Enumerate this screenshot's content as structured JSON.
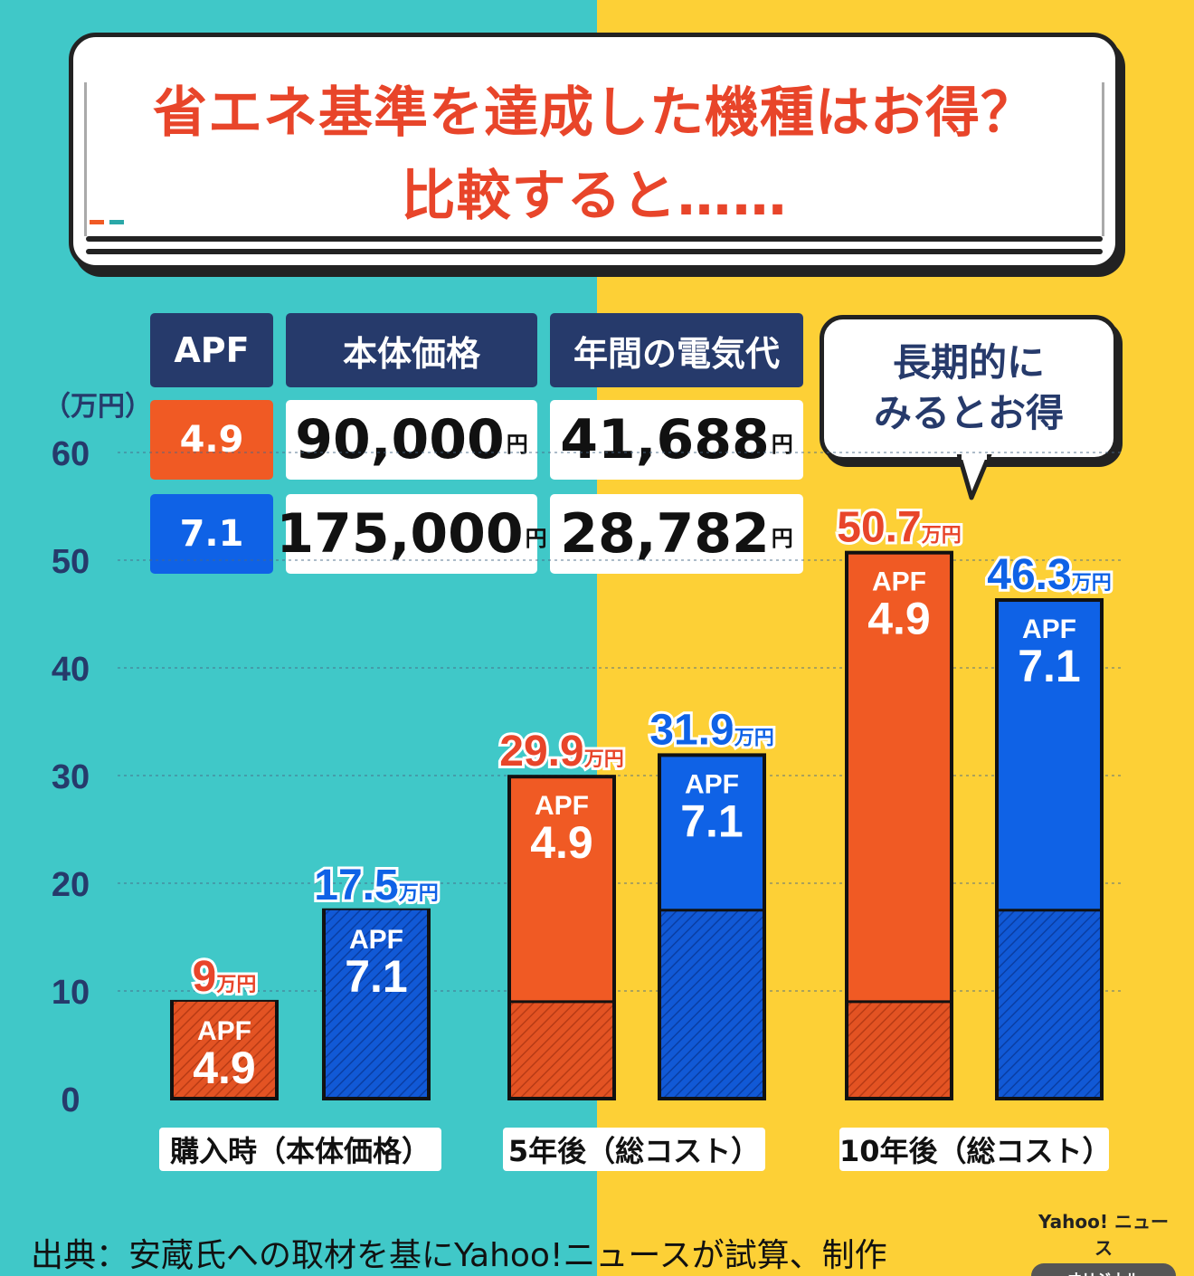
{
  "title_lines": [
    "省エネ基準を達成した機種はお得？",
    "比較すると……"
  ],
  "table": {
    "headers": [
      "APF",
      "本体価格",
      "年間の電気代"
    ],
    "rows": [
      {
        "apf": "4.9",
        "price": "90,000",
        "electricity": "41,688"
      },
      {
        "apf": "7.1",
        "price": "175,000",
        "electricity": "28,782"
      }
    ],
    "unit": "円"
  },
  "bubble_lines": [
    "長期的に",
    "みるとお得"
  ],
  "colors": {
    "apf49": "#f05a24",
    "apf71": "#0f62e6",
    "label49": "#e8452a",
    "label71": "#0f62e6",
    "navy": "#263a6b"
  },
  "chart_data": {
    "type": "bar",
    "ylabel": "（万円）",
    "ylim": [
      0,
      60
    ],
    "yticks": [
      0,
      10,
      20,
      30,
      40,
      50,
      60
    ],
    "grid": true,
    "categories": [
      "購入時（本体価格）",
      "5年後（総コスト）",
      "10年後（総コスト）"
    ],
    "series": [
      {
        "name": "APF 4.9",
        "bar_label": "APF",
        "bar_value": "4.9",
        "values": [
          9,
          29.9,
          50.7
        ],
        "labels": [
          "9",
          "29.9",
          "50.7"
        ],
        "base": 9
      },
      {
        "name": "APF 7.1",
        "bar_label": "APF",
        "bar_value": "7.1",
        "values": [
          17.5,
          31.9,
          46.3
        ],
        "labels": [
          "17.5",
          "31.9",
          "46.3"
        ],
        "base": 17.5
      }
    ],
    "value_unit": "万円"
  },
  "source": "出典：安蔵氏への取材を基にYahoo!ニュースが試算、制作",
  "logo": {
    "line1": "Yahoo! ニュース",
    "line2": "オリジナル"
  }
}
